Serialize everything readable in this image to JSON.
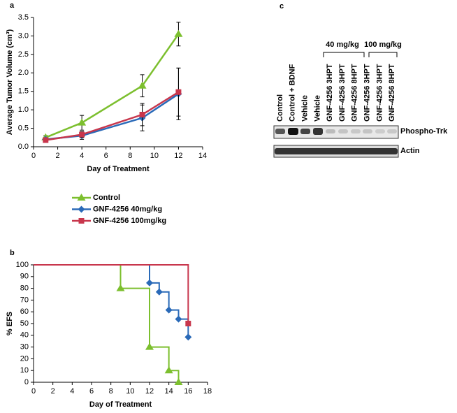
{
  "chart_data": [
    {
      "type": "line",
      "panel": "a",
      "x_label": "Day of Treatment",
      "y_label": "Average Tumor Volume (cm³)",
      "xlim": [
        0,
        14
      ],
      "xticks": [
        0,
        2,
        4,
        6,
        8,
        10,
        12,
        14
      ],
      "ylim": [
        0,
        3.5
      ],
      "yticks": [
        {
          "value": 0,
          "label": "0.0"
        },
        0.5,
        {
          "value": 1,
          "label": "1.0"
        },
        1.5,
        {
          "value": 2,
          "label": "2.0"
        },
        2.5,
        {
          "value": 3,
          "label": "3.0"
        },
        3.5
      ],
      "grid": false,
      "legend": "below",
      "series": [
        {
          "name": "Control",
          "color": "#7cbf2e",
          "marker": "triangle",
          "x": [
            1,
            4,
            9,
            12
          ],
          "values": [
            0.25,
            0.65,
            1.65,
            3.05
          ],
          "errors": [
            0.05,
            0.2,
            0.3,
            0.32
          ]
        },
        {
          "name": "GNF-4256 40mg/kg",
          "color": "#2a6ab8",
          "marker": "diamond",
          "x": [
            1,
            4,
            9,
            12
          ],
          "values": [
            0.2,
            0.3,
            0.78,
            1.43
          ],
          "errors": [
            0.04,
            0.1,
            0.35,
            0.7
          ]
        },
        {
          "name": "GNF-4256 100mg/kg",
          "color": "#c8364c",
          "marker": "square",
          "x": [
            1,
            4,
            9,
            12
          ],
          "values": [
            0.18,
            0.33,
            0.87,
            1.48
          ],
          "errors": [
            0.04,
            0.08,
            0.3,
            0.65
          ]
        }
      ]
    },
    {
      "type": "step",
      "panel": "b",
      "x_label": "Day of Treatment",
      "y_label": "% EFS",
      "xlim": [
        0,
        18
      ],
      "xticks": [
        0,
        2,
        4,
        6,
        8,
        10,
        12,
        14,
        16,
        18
      ],
      "ylim": [
        0,
        100
      ],
      "yticks": [
        0,
        10,
        20,
        30,
        40,
        50,
        60,
        70,
        80,
        90,
        100
      ],
      "grid": false,
      "series": [
        {
          "color": "#7cbf2e",
          "marker": "triangle",
          "x": [
            0,
            9,
            12,
            14,
            15
          ],
          "values": [
            100,
            80,
            30,
            10,
            0
          ]
        },
        {
          "color": "#2a6ab8",
          "marker": "diamond",
          "x": [
            0,
            12,
            13,
            14,
            15,
            16
          ],
          "values": [
            100,
            84.6,
            76.9,
            61.5,
            53.8,
            38.5
          ]
        },
        {
          "color": "#c8364c",
          "marker": "square",
          "x": [
            0,
            16
          ],
          "values": [
            100,
            50
          ]
        }
      ]
    }
  ],
  "blot": {
    "panel": "c",
    "groups": [
      "40 mg/kg",
      "100 mg/kg"
    ],
    "lanes": [
      "Control",
      "Control + BDNF",
      "Vehicle",
      "Vehicle",
      "GNF-4256 3HPT",
      "GNF-4256 3HPT",
      "GNF-4256 8HPT",
      "GNF-4256 3HPT",
      "GNF-4256 3HPT",
      "GNF-4256 8HPT"
    ],
    "rows": [
      "Phospho-Trk",
      "Actin"
    ]
  }
}
